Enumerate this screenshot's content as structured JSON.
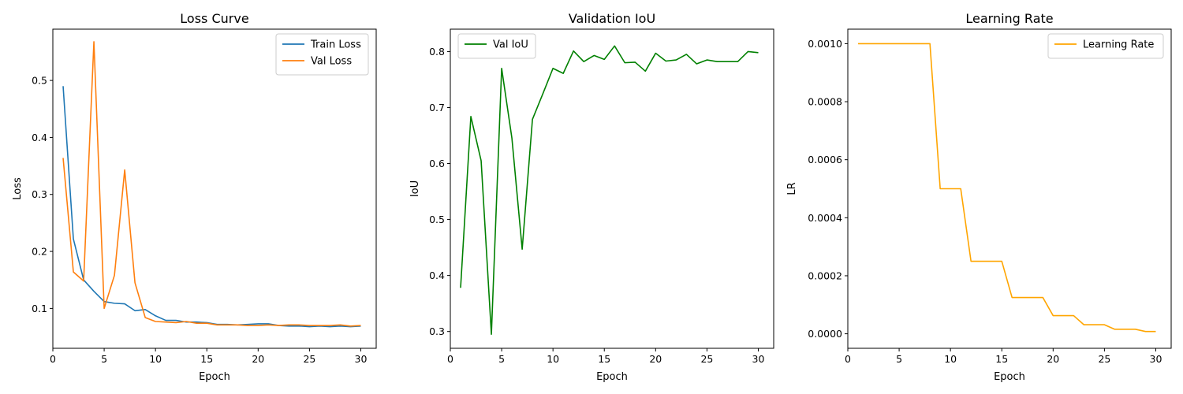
{
  "chart_data": [
    {
      "type": "line",
      "title": "Loss Curve",
      "xlabel": "Epoch",
      "ylabel": "Loss",
      "xlim": [
        0,
        31.5
      ],
      "ylim": [
        0.03,
        0.59
      ],
      "xticks": [
        0,
        5,
        10,
        15,
        20,
        25,
        30
      ],
      "yticks": [
        0.1,
        0.2,
        0.3,
        0.4,
        0.5
      ],
      "tick_decimals": 1,
      "legend_position": "top-right",
      "x": [
        1,
        2,
        3,
        4,
        5,
        6,
        7,
        8,
        9,
        10,
        11,
        12,
        13,
        14,
        15,
        16,
        17,
        18,
        19,
        20,
        21,
        22,
        23,
        24,
        25,
        26,
        27,
        28,
        29,
        30
      ],
      "series": [
        {
          "name": "Train Loss",
          "color": "#1f77b4",
          "values": [
            0.49,
            0.222,
            0.15,
            0.13,
            0.112,
            0.109,
            0.108,
            0.096,
            0.098,
            0.087,
            0.079,
            0.079,
            0.076,
            0.076,
            0.075,
            0.072,
            0.072,
            0.071,
            0.072,
            0.073,
            0.073,
            0.07,
            0.069,
            0.069,
            0.068,
            0.069,
            0.068,
            0.069,
            0.068,
            0.069
          ]
        },
        {
          "name": "Val Loss",
          "color": "#ff7f0e",
          "values": [
            0.364,
            0.164,
            0.148,
            0.568,
            0.1,
            0.158,
            0.343,
            0.145,
            0.084,
            0.077,
            0.076,
            0.075,
            0.077,
            0.074,
            0.074,
            0.071,
            0.071,
            0.071,
            0.07,
            0.07,
            0.071,
            0.07,
            0.071,
            0.071,
            0.07,
            0.07,
            0.07,
            0.071,
            0.069,
            0.07
          ]
        }
      ]
    },
    {
      "type": "line",
      "title": "Validation IoU",
      "xlabel": "Epoch",
      "ylabel": "IoU",
      "xlim": [
        0,
        31.5
      ],
      "ylim": [
        0.27,
        0.84
      ],
      "xticks": [
        0,
        5,
        10,
        15,
        20,
        25,
        30
      ],
      "yticks": [
        0.3,
        0.4,
        0.5,
        0.6,
        0.7,
        0.8
      ],
      "tick_decimals": 1,
      "legend_position": "top-left",
      "x": [
        1,
        2,
        3,
        4,
        5,
        6,
        7,
        8,
        9,
        10,
        11,
        12,
        13,
        14,
        15,
        16,
        17,
        18,
        19,
        20,
        21,
        22,
        23,
        24,
        25,
        26,
        27,
        28,
        29,
        30
      ],
      "series": [
        {
          "name": "Val IoU",
          "color": "#008000",
          "values": [
            0.378,
            0.684,
            0.605,
            0.295,
            0.77,
            0.645,
            0.447,
            0.679,
            0.724,
            0.77,
            0.761,
            0.801,
            0.782,
            0.793,
            0.786,
            0.81,
            0.78,
            0.781,
            0.765,
            0.797,
            0.783,
            0.785,
            0.795,
            0.778,
            0.785,
            0.782,
            0.782,
            0.782,
            0.8,
            0.798
          ]
        }
      ]
    },
    {
      "type": "line",
      "title": "Learning Rate",
      "xlabel": "Epoch",
      "ylabel": "LR",
      "xlim": [
        0,
        31.5
      ],
      "ylim": [
        -5e-05,
        0.00105
      ],
      "xticks": [
        0,
        5,
        10,
        15,
        20,
        25,
        30
      ],
      "yticks": [
        0.0,
        0.0002,
        0.0004,
        0.0006,
        0.0008,
        0.001
      ],
      "tick_decimals": 4,
      "legend_position": "top-right",
      "x": [
        1,
        2,
        3,
        4,
        5,
        6,
        7,
        8,
        9,
        10,
        11,
        12,
        13,
        14,
        15,
        16,
        17,
        18,
        19,
        20,
        21,
        22,
        23,
        24,
        25,
        26,
        27,
        28,
        29,
        30
      ],
      "series": [
        {
          "name": "Learning Rate",
          "color": "#ffa500",
          "values": [
            0.001,
            0.001,
            0.001,
            0.001,
            0.001,
            0.001,
            0.001,
            0.001,
            0.0005,
            0.0005,
            0.0005,
            0.00025,
            0.00025,
            0.00025,
            0.00025,
            0.000125,
            0.000125,
            0.000125,
            0.000125,
            6.25e-05,
            6.25e-05,
            6.25e-05,
            3.125e-05,
            3.125e-05,
            3.125e-05,
            1.5625e-05,
            1.5625e-05,
            1.5625e-05,
            7.8125e-06,
            7.8125e-06
          ]
        }
      ]
    }
  ]
}
